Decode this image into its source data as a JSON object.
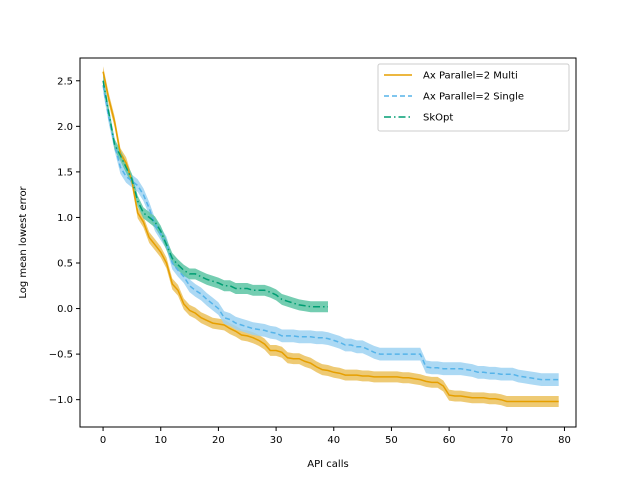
{
  "chart_data": {
    "type": "line",
    "title": "",
    "xlabel": "API calls",
    "ylabel": "Log mean lowest error",
    "xlim": [
      -4,
      82
    ],
    "ylim": [
      -1.3,
      2.75
    ],
    "xticks": [
      0,
      10,
      20,
      30,
      40,
      50,
      60,
      70,
      80
    ],
    "yticks": [
      -1.0,
      -0.5,
      0.0,
      0.5,
      1.0,
      1.5,
      2.0,
      2.5
    ],
    "xtick_labels": [
      "0",
      "10",
      "20",
      "30",
      "40",
      "50",
      "60",
      "70",
      "80"
    ],
    "ytick_labels": [
      "−1.0",
      "−0.5",
      "0.0",
      "0.5",
      "1.0",
      "1.5",
      "2.0",
      "2.5"
    ],
    "grid": false,
    "legend_position": "top-right",
    "series": [
      {
        "name": "Ax Parallel=2 Multi",
        "color": "#E69F00",
        "style": "solid",
        "band_color": "#EBC15C",
        "x": [
          0,
          1,
          2,
          3,
          4,
          5,
          6,
          7,
          8,
          9,
          10,
          11,
          12,
          13,
          14,
          15,
          16,
          17,
          18,
          19,
          20,
          21,
          22,
          23,
          24,
          25,
          26,
          27,
          28,
          29,
          30,
          31,
          32,
          33,
          34,
          35,
          36,
          37,
          38,
          39,
          40,
          41,
          42,
          43,
          44,
          45,
          46,
          47,
          48,
          49,
          50,
          51,
          52,
          53,
          54,
          55,
          56,
          57,
          58,
          59,
          60,
          61,
          62,
          63,
          64,
          65,
          66,
          67,
          68,
          69,
          70,
          71,
          72,
          73,
          74,
          75,
          76,
          77,
          78,
          79
        ],
        "y": [
          2.6,
          2.3,
          2.05,
          1.7,
          1.6,
          1.4,
          1.05,
          0.95,
          0.78,
          0.7,
          0.62,
          0.5,
          0.27,
          0.2,
          0.05,
          -0.02,
          -0.05,
          -0.1,
          -0.13,
          -0.16,
          -0.17,
          -0.18,
          -0.22,
          -0.25,
          -0.29,
          -0.3,
          -0.32,
          -0.35,
          -0.39,
          -0.46,
          -0.46,
          -0.48,
          -0.54,
          -0.55,
          -0.55,
          -0.58,
          -0.6,
          -0.64,
          -0.67,
          -0.68,
          -0.7,
          -0.71,
          -0.73,
          -0.73,
          -0.73,
          -0.74,
          -0.74,
          -0.75,
          -0.75,
          -0.75,
          -0.75,
          -0.75,
          -0.76,
          -0.76,
          -0.77,
          -0.78,
          -0.8,
          -0.81,
          -0.81,
          -0.85,
          -0.95,
          -0.96,
          -0.96,
          -0.97,
          -0.98,
          -0.98,
          -0.98,
          -0.99,
          -0.99,
          -1.0,
          -1.02,
          -1.02,
          -1.02,
          -1.02,
          -1.02,
          -1.02,
          -1.02,
          -1.02,
          -1.02,
          -1.02
        ],
        "band": 0.06
      },
      {
        "name": "Ax Parallel=2 Single",
        "color": "#56B4E9",
        "style": "dashed",
        "band_color": "#9ED2F2",
        "x": [
          0,
          1,
          2,
          3,
          4,
          5,
          6,
          7,
          8,
          9,
          10,
          11,
          12,
          13,
          14,
          15,
          16,
          17,
          18,
          19,
          20,
          21,
          22,
          23,
          24,
          25,
          26,
          27,
          28,
          29,
          30,
          31,
          32,
          33,
          34,
          35,
          36,
          37,
          38,
          39,
          40,
          41,
          42,
          43,
          44,
          45,
          46,
          47,
          48,
          49,
          50,
          51,
          52,
          53,
          54,
          55,
          56,
          57,
          58,
          59,
          60,
          61,
          62,
          63,
          64,
          65,
          66,
          67,
          68,
          69,
          70,
          71,
          72,
          73,
          74,
          75,
          76,
          77,
          78,
          79
        ],
        "y": [
          2.45,
          2.1,
          1.8,
          1.55,
          1.45,
          1.4,
          1.35,
          1.25,
          1.1,
          0.92,
          0.82,
          0.72,
          0.5,
          0.42,
          0.35,
          0.25,
          0.2,
          0.16,
          0.1,
          0.05,
          0.0,
          -0.1,
          -0.12,
          -0.16,
          -0.18,
          -0.2,
          -0.22,
          -0.23,
          -0.24,
          -0.26,
          -0.27,
          -0.3,
          -0.3,
          -0.3,
          -0.31,
          -0.31,
          -0.31,
          -0.32,
          -0.32,
          -0.33,
          -0.35,
          -0.37,
          -0.4,
          -0.4,
          -0.42,
          -0.42,
          -0.45,
          -0.48,
          -0.5,
          -0.5,
          -0.5,
          -0.5,
          -0.5,
          -0.5,
          -0.5,
          -0.5,
          -0.64,
          -0.65,
          -0.65,
          -0.66,
          -0.66,
          -0.66,
          -0.66,
          -0.67,
          -0.68,
          -0.7,
          -0.7,
          -0.71,
          -0.71,
          -0.72,
          -0.72,
          -0.72,
          -0.74,
          -0.75,
          -0.76,
          -0.77,
          -0.78,
          -0.78,
          -0.78,
          -0.78
        ],
        "band": 0.07
      },
      {
        "name": "SkOpt",
        "color": "#009E73",
        "style": "dashdot",
        "band_color": "#5CC4A3",
        "x": [
          0,
          1,
          2,
          3,
          4,
          5,
          6,
          7,
          8,
          9,
          10,
          11,
          12,
          13,
          14,
          15,
          16,
          17,
          18,
          19,
          20,
          21,
          22,
          23,
          24,
          25,
          26,
          27,
          28,
          29,
          30,
          31,
          32,
          33,
          34,
          35,
          36,
          37,
          38,
          39
        ],
        "y": [
          2.5,
          2.15,
          1.8,
          1.68,
          1.55,
          1.42,
          1.18,
          1.05,
          1.0,
          0.95,
          0.85,
          0.7,
          0.55,
          0.48,
          0.42,
          0.38,
          0.38,
          0.35,
          0.32,
          0.3,
          0.28,
          0.25,
          0.25,
          0.22,
          0.22,
          0.22,
          0.2,
          0.2,
          0.2,
          0.18,
          0.15,
          0.1,
          0.08,
          0.06,
          0.04,
          0.03,
          0.02,
          0.02,
          0.02,
          0.02
        ],
        "band": 0.06
      }
    ]
  }
}
